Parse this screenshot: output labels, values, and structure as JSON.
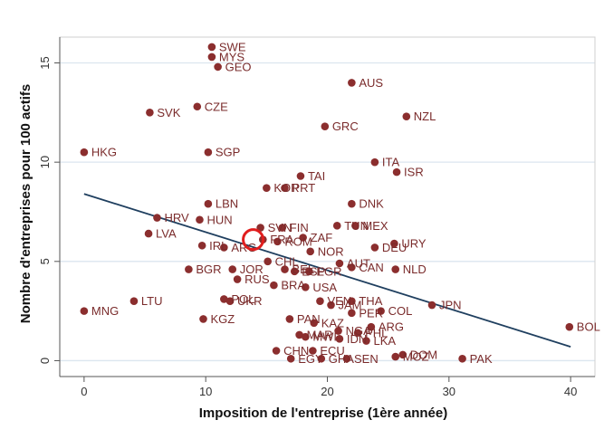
{
  "chart_data": {
    "type": "scatter",
    "xlabel": "Imposition de l'entreprise (1ère année)",
    "ylabel": "Nombre d'entreprises pour 100 actifs",
    "xlim": [
      -2,
      42
    ],
    "ylim": [
      -0.8,
      16.3
    ],
    "xticks": [
      0,
      10,
      20,
      30,
      40
    ],
    "yticks": [
      0,
      5,
      10,
      15
    ],
    "grid": true,
    "point_color": "#8b2e2e",
    "line_color": "#1f3f5f",
    "highlight_color": "#e11d1d",
    "fit_line": {
      "x": [
        0,
        40
      ],
      "y": [
        8.4,
        0.7
      ]
    },
    "highlight": {
      "x": 13.9,
      "y": 6.1
    },
    "points": [
      {
        "label": "SWE",
        "x": 10.5,
        "y": 15.8
      },
      {
        "label": "MYS",
        "x": 10.5,
        "y": 15.3
      },
      {
        "label": "GEO",
        "x": 11.0,
        "y": 14.8
      },
      {
        "label": "AUS",
        "x": 22.0,
        "y": 14.0
      },
      {
        "label": "SVK",
        "x": 5.4,
        "y": 12.5
      },
      {
        "label": "CZE",
        "x": 9.3,
        "y": 12.8
      },
      {
        "label": "NZL",
        "x": 26.5,
        "y": 12.3
      },
      {
        "label": "GRC",
        "x": 19.8,
        "y": 11.8
      },
      {
        "label": "HKG",
        "x": 0.0,
        "y": 10.5
      },
      {
        "label": "SGP",
        "x": 10.2,
        "y": 10.5
      },
      {
        "label": "ITA",
        "x": 23.9,
        "y": 10.0
      },
      {
        "label": "ISR",
        "x": 25.7,
        "y": 9.5
      },
      {
        "label": "TAI",
        "x": 17.8,
        "y": 9.3
      },
      {
        "label": "KOR",
        "x": 15.0,
        "y": 8.7
      },
      {
        "label": "PRT",
        "x": 16.5,
        "y": 8.7
      },
      {
        "label": "LBN",
        "x": 10.2,
        "y": 7.9
      },
      {
        "label": "DNK",
        "x": 22.0,
        "y": 7.9
      },
      {
        "label": "HRV",
        "x": 6.0,
        "y": 7.2
      },
      {
        "label": "HUN",
        "x": 9.5,
        "y": 7.1
      },
      {
        "label": "TUN",
        "x": 20.8,
        "y": 6.8
      },
      {
        "label": "MEX",
        "x": 22.3,
        "y": 6.8
      },
      {
        "label": "SVN",
        "x": 14.5,
        "y": 6.7
      },
      {
        "label": "FIN",
        "x": 16.3,
        "y": 6.7
      },
      {
        "label": "LVA",
        "x": 5.3,
        "y": 6.4
      },
      {
        "label": "ZAF",
        "x": 18.0,
        "y": 6.2
      },
      {
        "label": "FRA",
        "x": 14.7,
        "y": 6.1
      },
      {
        "label": "ROM",
        "x": 15.9,
        "y": 6.0
      },
      {
        "label": "URY",
        "x": 25.5,
        "y": 5.9
      },
      {
        "label": "IRL",
        "x": 9.7,
        "y": 5.8
      },
      {
        "label": "ARG",
        "x": 11.5,
        "y": 5.7
      },
      {
        "label": "DEU",
        "x": 23.9,
        "y": 5.7
      },
      {
        "label": "NOR",
        "x": 18.6,
        "y": 5.5
      },
      {
        "label": "CHL",
        "x": 15.1,
        "y": 5.0
      },
      {
        "label": "AUT",
        "x": 21.0,
        "y": 4.9
      },
      {
        "label": "BGR",
        "x": 8.6,
        "y": 4.6
      },
      {
        "label": "JOR",
        "x": 12.2,
        "y": 4.6
      },
      {
        "label": "BEL",
        "x": 16.5,
        "y": 4.6
      },
      {
        "label": "CAN",
        "x": 22.0,
        "y": 4.7
      },
      {
        "label": "NLD",
        "x": 25.6,
        "y": 4.6
      },
      {
        "label": "ESP",
        "x": 17.3,
        "y": 4.5
      },
      {
        "label": "EGR",
        "x": 18.5,
        "y": 4.5
      },
      {
        "label": "RUS",
        "x": 12.6,
        "y": 4.1
      },
      {
        "label": "BRA",
        "x": 15.6,
        "y": 3.8
      },
      {
        "label": "USA",
        "x": 18.2,
        "y": 3.7
      },
      {
        "label": "LTU",
        "x": 4.1,
        "y": 3.0
      },
      {
        "label": "POL",
        "x": 11.5,
        "y": 3.1
      },
      {
        "label": "UKR",
        "x": 12.0,
        "y": 3.0
      },
      {
        "label": "VEN",
        "x": 19.4,
        "y": 3.0
      },
      {
        "label": "JAM",
        "x": 20.3,
        "y": 2.8
      },
      {
        "label": "THA",
        "x": 22.0,
        "y": 3.0
      },
      {
        "label": "JPN",
        "x": 28.6,
        "y": 2.8
      },
      {
        "label": "MNG",
        "x": 0.0,
        "y": 2.5
      },
      {
        "label": "COL",
        "x": 24.4,
        "y": 2.5
      },
      {
        "label": "PER",
        "x": 22.0,
        "y": 2.4
      },
      {
        "label": "KGZ",
        "x": 9.8,
        "y": 2.1
      },
      {
        "label": "PAN",
        "x": 16.9,
        "y": 2.1
      },
      {
        "label": "KAZ",
        "x": 18.9,
        "y": 1.9
      },
      {
        "label": "ARG",
        "x": 23.6,
        "y": 1.7
      },
      {
        "label": "BOL",
        "x": 39.9,
        "y": 1.7
      },
      {
        "label": "MAR",
        "x": 17.7,
        "y": 1.3
      },
      {
        "label": "NGA",
        "x": 20.9,
        "y": 1.5
      },
      {
        "label": "PHL",
        "x": 22.5,
        "y": 1.4
      },
      {
        "label": "MWI",
        "x": 18.2,
        "y": 1.2
      },
      {
        "label": "IDN",
        "x": 21.0,
        "y": 1.1
      },
      {
        "label": "LKA",
        "x": 23.2,
        "y": 1.0
      },
      {
        "label": "CHN",
        "x": 15.8,
        "y": 0.5
      },
      {
        "label": "ECU",
        "x": 18.8,
        "y": 0.5
      },
      {
        "label": "DOM",
        "x": 26.2,
        "y": 0.3
      },
      {
        "label": "MOZ",
        "x": 25.6,
        "y": 0.2
      },
      {
        "label": "EGY",
        "x": 17.0,
        "y": 0.1
      },
      {
        "label": "GHA",
        "x": 19.5,
        "y": 0.1
      },
      {
        "label": "SEN",
        "x": 21.6,
        "y": 0.1
      },
      {
        "label": "PAK",
        "x": 31.1,
        "y": 0.1
      }
    ]
  }
}
